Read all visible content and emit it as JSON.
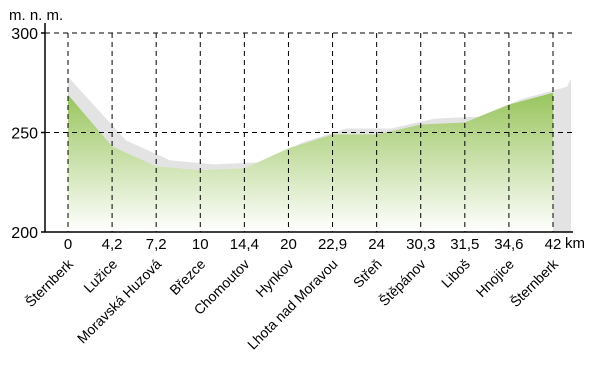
{
  "chart_data": {
    "type": "area",
    "title": "",
    "ylabel": "m. n. m.",
    "xlabel": "km",
    "ylim": [
      200,
      300
    ],
    "yticks": [
      200,
      250,
      300
    ],
    "x": [
      0,
      4.2,
      7.2,
      10,
      14.4,
      20,
      22.9,
      24,
      30.3,
      31.5,
      34.6,
      42
    ],
    "x_tick_labels": [
      "0",
      "4,2",
      "7,2",
      "10",
      "14,4",
      "20",
      "22,9",
      "24",
      "30,3",
      "31,5",
      "34,6",
      "42"
    ],
    "places": [
      "Šternberk",
      "Lužice",
      "Moravská Huzová",
      "Březce",
      "Chomoutov",
      "Hynkov",
      "Lhota nad Moravou",
      "Střeň",
      "Štěpánov",
      "Liboš",
      "Hnojice",
      "Šternberk"
    ],
    "series": [
      {
        "values": [
          269,
          243,
          233,
          231,
          232,
          242,
          249,
          249,
          254,
          255,
          264,
          270
        ]
      }
    ],
    "grid": "dashed vertical at each stop, dashed horizontal at 250 and 300",
    "colors": {
      "fill_top": "#98c45c",
      "fill_bottom": "#ffffff",
      "shadow": "#e3e3e3",
      "grid": "#000000"
    }
  }
}
